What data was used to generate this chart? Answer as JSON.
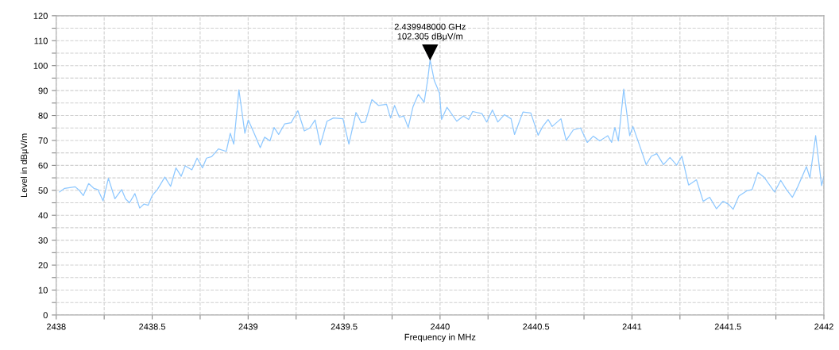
{
  "chart_data": {
    "type": "line",
    "xlabel": "Frequency in MHz",
    "ylabel": "Level in dBμV/m",
    "xlim": [
      2438,
      2442
    ],
    "ylim": [
      0,
      120
    ],
    "xticks": [
      2438,
      {
        "value": 2438.25,
        "label": null
      },
      2438.5,
      {
        "value": 2438.75,
        "label": null
      },
      2439,
      {
        "value": 2439.25,
        "label": null
      },
      2439.5,
      {
        "value": 2439.75,
        "label": null
      },
      2440,
      {
        "value": 2440.25,
        "label": null
      },
      2440.5,
      {
        "value": 2440.75,
        "label": null
      },
      2441,
      {
        "value": 2441.25,
        "label": null
      },
      2441.5,
      {
        "value": 2441.75,
        "label": null
      },
      2442
    ],
    "yticks": [
      0,
      {
        "value": 5,
        "label": null
      },
      10,
      {
        "value": 15,
        "label": null
      },
      20,
      {
        "value": 25,
        "label": null
      },
      30,
      {
        "value": 35,
        "label": null
      },
      40,
      {
        "value": 45,
        "label": null
      },
      50,
      {
        "value": 55,
        "label": null
      },
      60,
      {
        "value": 65,
        "label": null
      },
      70,
      {
        "value": 75,
        "label": null
      },
      80,
      {
        "value": 85,
        "label": null
      },
      90,
      {
        "value": 95,
        "label": null
      },
      100,
      {
        "value": 105,
        "label": null
      },
      110,
      {
        "value": 115,
        "label": null
      },
      120
    ],
    "grid": true,
    "line_style": "solid",
    "marker": "none",
    "annotations": [
      {
        "text": "2.439948000 GHz\n102.305 dBμV/m",
        "x": 2439.948,
        "y": 102.305
      }
    ],
    "series": [
      {
        "color": "#8ec8ff",
        "x": [
          2438.017,
          2438.044,
          2438.099,
          2438.12,
          2438.141,
          2438.169,
          2438.196,
          2438.217,
          2438.244,
          2438.272,
          2438.306,
          2438.341,
          2438.361,
          2438.382,
          2438.41,
          2438.435,
          2438.458,
          2438.479,
          2438.5,
          2438.527,
          2438.566,
          2438.596,
          2438.624,
          2438.651,
          2438.672,
          2438.707,
          2438.734,
          2438.762,
          2438.783,
          2438.81,
          2438.845,
          2438.886,
          2438.907,
          2438.925,
          2438.952,
          2438.983,
          2439.001,
          2439.031,
          2439.063,
          2439.086,
          2439.114,
          2439.135,
          2439.159,
          2439.19,
          2439.224,
          2439.259,
          2439.293,
          2439.321,
          2439.349,
          2439.376,
          2439.411,
          2439.445,
          2439.494,
          2439.525,
          2439.562,
          2439.59,
          2439.611,
          2439.645,
          2439.68,
          2439.721,
          2439.742,
          2439.763,
          2439.788,
          2439.811,
          2439.834,
          2439.859,
          2439.887,
          2439.917,
          2439.935,
          2439.948,
          2439.97,
          2439.997,
          2440.008,
          2440.036,
          2440.087,
          2440.121,
          2440.149,
          2440.17,
          2440.218,
          2440.243,
          2440.273,
          2440.301,
          2440.335,
          2440.37,
          2440.388,
          2440.432,
          2440.473,
          2440.511,
          2440.535,
          2440.563,
          2440.584,
          2440.63,
          2440.657,
          2440.694,
          2440.732,
          2440.767,
          2440.798,
          2440.832,
          2440.874,
          2440.894,
          2440.911,
          2440.929,
          2440.957,
          2440.988,
          2441.005,
          2441.046,
          2441.074,
          2441.101,
          2441.129,
          2441.164,
          2441.198,
          2441.233,
          2441.26,
          2441.295,
          2441.336,
          2441.371,
          2441.405,
          2441.44,
          2441.474,
          2441.502,
          2441.527,
          2441.557,
          2441.598,
          2441.626,
          2441.656,
          2441.688,
          2441.743,
          2441.775,
          2441.805,
          2441.836,
          2441.861,
          2441.909,
          2441.927,
          2441.957,
          2441.988,
          2442.0
        ],
        "values": [
          49.3,
          50.8,
          51.4,
          50.0,
          47.9,
          52.7,
          50.8,
          50.3,
          45.8,
          54.8,
          46.6,
          50.3,
          46.6,
          45.0,
          48.7,
          42.9,
          44.5,
          44.0,
          47.9,
          50.3,
          55.3,
          51.6,
          59.0,
          55.6,
          59.8,
          58.2,
          62.9,
          59.0,
          62.9,
          63.5,
          66.6,
          65.6,
          72.9,
          68.5,
          90.3,
          72.9,
          78.2,
          72.9,
          67.1,
          71.3,
          69.8,
          75.2,
          72.4,
          76.6,
          77.1,
          81.9,
          73.8,
          75.0,
          78.2,
          68.2,
          77.7,
          79.0,
          78.7,
          68.5,
          81.2,
          77.1,
          77.4,
          86.4,
          84.0,
          84.5,
          79.0,
          84.0,
          79.3,
          79.8,
          75.2,
          83.5,
          88.5,
          85.3,
          94.0,
          102.305,
          94.0,
          89.0,
          78.4,
          83.3,
          77.7,
          79.8,
          78.4,
          81.6,
          80.8,
          77.4,
          82.2,
          77.4,
          80.3,
          78.7,
          72.4,
          81.4,
          81.0,
          72.1,
          75.6,
          78.4,
          75.6,
          78.7,
          70.0,
          74.2,
          75.0,
          69.2,
          71.7,
          69.8,
          71.9,
          69.2,
          75.2,
          69.8,
          90.6,
          71.9,
          75.6,
          66.6,
          60.3,
          63.7,
          64.7,
          60.3,
          63.2,
          60.1,
          63.7,
          52.1,
          54.2,
          45.6,
          47.2,
          42.6,
          45.6,
          44.5,
          42.4,
          47.7,
          49.8,
          50.3,
          57.2,
          55.3,
          49.3,
          54.0,
          50.3,
          47.2,
          51.0,
          59.5,
          55.0,
          71.9,
          51.9,
          55.6
        ]
      }
    ]
  }
}
